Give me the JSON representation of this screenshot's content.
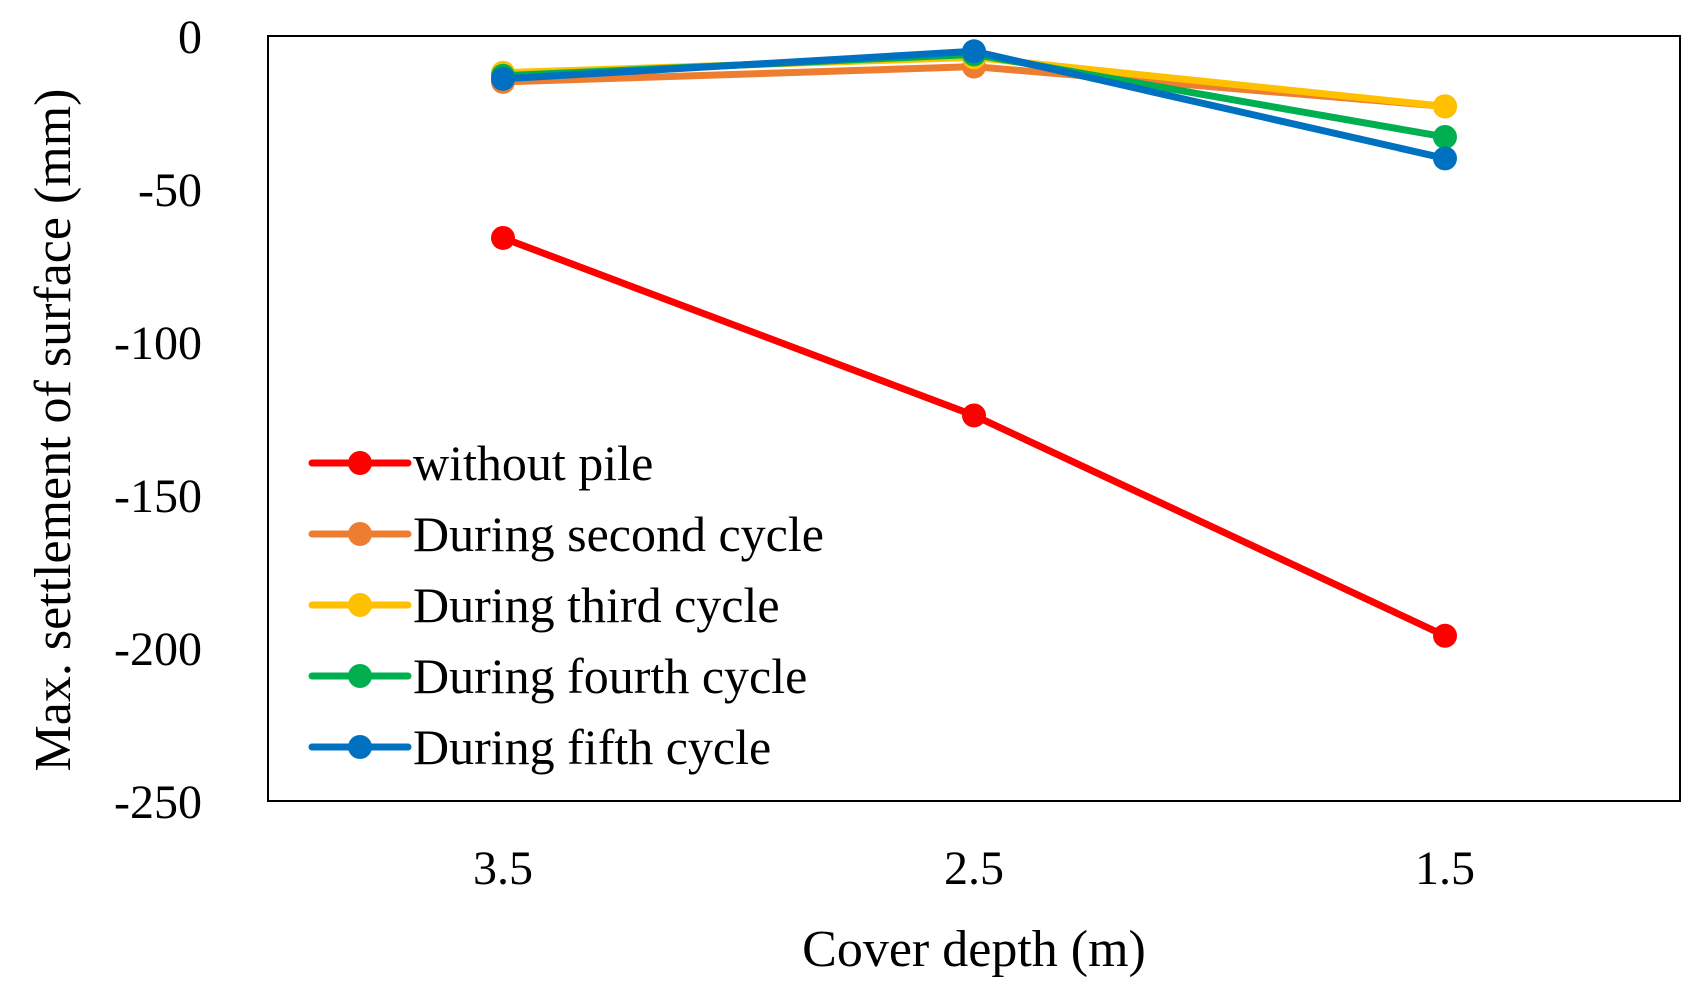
{
  "chart_data": {
    "type": "line",
    "title": "",
    "xlabel": "Cover depth (m)",
    "ylabel": "Max. settlement of surface (mm)",
    "categories": [
      "3.5",
      "2.5",
      "1.5"
    ],
    "ylim": [
      -250,
      0
    ],
    "yticks": [
      0,
      -50,
      -100,
      -150,
      -200,
      -250
    ],
    "grid": false,
    "legend_position": "bottom-left",
    "series": [
      {
        "name": "without pile",
        "color": "#ff0000",
        "values": [
          -66,
          -124,
          -196
        ]
      },
      {
        "name": "During second cycle",
        "color": "#ed7d31",
        "values": [
          -15,
          -10,
          -23
        ]
      },
      {
        "name": "During third cycle",
        "color": "#ffc000",
        "values": [
          -12,
          -7,
          -23
        ]
      },
      {
        "name": "During fourth cycle",
        "color": "#00b050",
        "values": [
          -13,
          -6,
          -33
        ]
      },
      {
        "name": "During fifth cycle",
        "color": "#0070c0",
        "values": [
          -14,
          -5,
          -40
        ]
      }
    ]
  }
}
